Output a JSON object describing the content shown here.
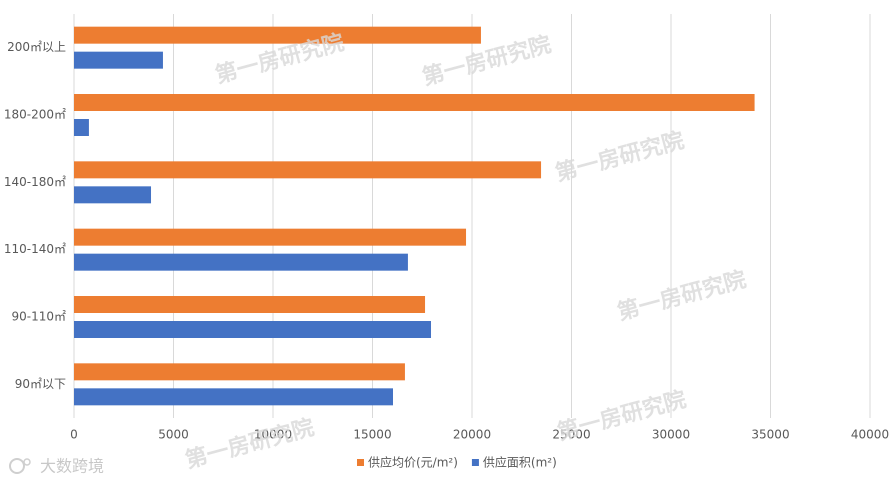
{
  "chart_data": {
    "type": "hbar",
    "categories": [
      "200㎡以上",
      "180-200㎡",
      "140-180㎡",
      "110-140㎡",
      "90-110㎡",
      "90㎡以下"
    ],
    "series": [
      {
        "name": "供应均价(元/m²)",
        "color": "#ed7d31",
        "values": [
          20450,
          34200,
          23470,
          19700,
          17640,
          16630
        ]
      },
      {
        "name": "供应面积(m²)",
        "color": "#4472c4",
        "values": [
          4470,
          750,
          3870,
          16780,
          17940,
          16030
        ]
      }
    ],
    "xlim": [
      0,
      40000
    ],
    "xticks": [
      0,
      5000,
      10000,
      15000,
      20000,
      25000,
      30000,
      35000,
      40000
    ],
    "grid": true,
    "legend": "bottom",
    "watermarks": [
      "第一房研究院",
      "第一房研究院",
      "第一房研究院",
      "第一房研究院",
      "第一房研究院",
      "第一房研究院"
    ],
    "logo": "大数跨境"
  }
}
